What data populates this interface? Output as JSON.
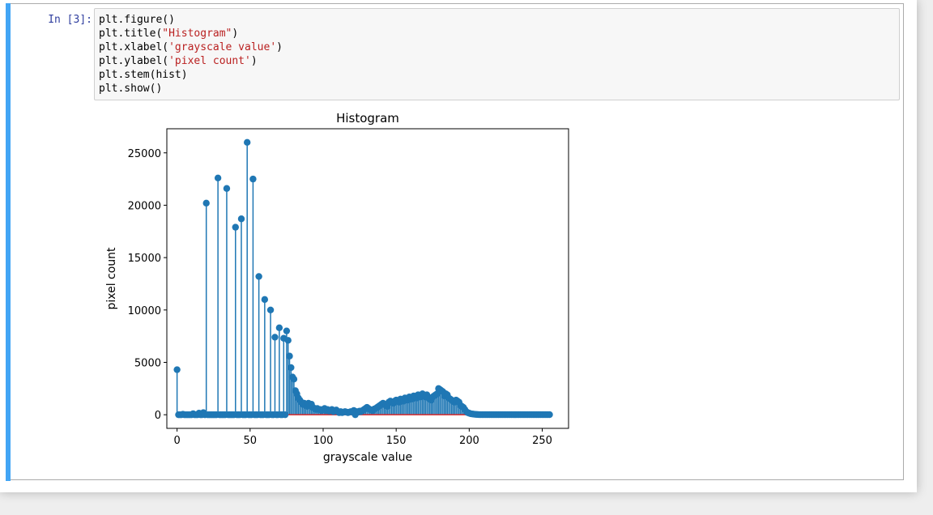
{
  "cell": {
    "prompt": "In [3]:",
    "code_lines": [
      {
        "pre": "plt.figure()",
        "str": "",
        "post": ""
      },
      {
        "pre": "plt.title(",
        "str": "\"Histogram\"",
        "post": ")"
      },
      {
        "pre": "plt.xlabel(",
        "str": "'grayscale value'",
        "post": ")"
      },
      {
        "pre": "plt.ylabel(",
        "str": "'pixel count'",
        "post": ")"
      },
      {
        "pre": "plt.stem(hist)",
        "str": "",
        "post": ""
      },
      {
        "pre": "plt.show()",
        "str": "",
        "post": ""
      }
    ]
  },
  "chart_data": {
    "type": "stem",
    "title": "Histogram",
    "xlabel": "grayscale value",
    "ylabel": "pixel count",
    "xlim": [
      -7,
      268
    ],
    "ylim": [
      -1300,
      27300
    ],
    "xticks": [
      0,
      50,
      100,
      150,
      200,
      250
    ],
    "yticks": [
      0,
      5000,
      10000,
      15000,
      20000,
      25000
    ],
    "colors": {
      "stem": "#1f77b4",
      "baseline": "#d62728"
    },
    "x": [
      0,
      1,
      2,
      3,
      4,
      5,
      6,
      7,
      8,
      9,
      10,
      11,
      12,
      13,
      14,
      15,
      16,
      17,
      18,
      19,
      20,
      21,
      22,
      23,
      24,
      25,
      26,
      27,
      28,
      29,
      30,
      31,
      32,
      33,
      34,
      35,
      36,
      37,
      38,
      39,
      40,
      41,
      42,
      43,
      44,
      45,
      46,
      47,
      48,
      49,
      50,
      51,
      52,
      53,
      54,
      55,
      56,
      57,
      58,
      59,
      60,
      61,
      62,
      63,
      64,
      65,
      66,
      67,
      68,
      69,
      70,
      71,
      72,
      73,
      74,
      75,
      76,
      77,
      78,
      79,
      80,
      81,
      82,
      83,
      84,
      85,
      86,
      87,
      88,
      89,
      90,
      91,
      92,
      93,
      94,
      95,
      96,
      97,
      98,
      99,
      100,
      101,
      102,
      103,
      104,
      105,
      106,
      107,
      108,
      109,
      110,
      111,
      112,
      113,
      114,
      115,
      116,
      117,
      118,
      119,
      120,
      121,
      122,
      123,
      124,
      125,
      126,
      127,
      128,
      129,
      130,
      131,
      132,
      133,
      134,
      135,
      136,
      137,
      138,
      139,
      140,
      141,
      142,
      143,
      144,
      145,
      146,
      147,
      148,
      149,
      150,
      151,
      152,
      153,
      154,
      155,
      156,
      157,
      158,
      159,
      160,
      161,
      162,
      163,
      164,
      165,
      166,
      167,
      168,
      169,
      170,
      171,
      172,
      173,
      174,
      175,
      176,
      177,
      178,
      179,
      180,
      181,
      182,
      183,
      184,
      185,
      186,
      187,
      188,
      189,
      190,
      191,
      192,
      193,
      194,
      195,
      196,
      197,
      198,
      199,
      200,
      201,
      202,
      203,
      204,
      205,
      206,
      207,
      208,
      209,
      210,
      211,
      212,
      213,
      214,
      215,
      216,
      217,
      218,
      219,
      220,
      221,
      222,
      223,
      224,
      225,
      226,
      227,
      228,
      229,
      230,
      231,
      232,
      233,
      234,
      235,
      236,
      237,
      238,
      239,
      240,
      241,
      242,
      243,
      244,
      245,
      246,
      247,
      248,
      249,
      250,
      251,
      252,
      253,
      254,
      255
    ],
    "y": [
      4300,
      0,
      0,
      0,
      50,
      0,
      0,
      0,
      0,
      0,
      0,
      100,
      0,
      0,
      0,
      150,
      0,
      0,
      200,
      0,
      20200,
      0,
      0,
      0,
      0,
      0,
      0,
      0,
      22600,
      0,
      0,
      0,
      0,
      0,
      21600,
      0,
      0,
      0,
      0,
      0,
      17900,
      0,
      0,
      0,
      18700,
      0,
      0,
      0,
      26000,
      0,
      0,
      0,
      22500,
      0,
      0,
      0,
      13200,
      0,
      0,
      0,
      11000,
      0,
      0,
      0,
      10000,
      0,
      0,
      7400,
      0,
      0,
      8300,
      0,
      0,
      7300,
      0,
      8000,
      7100,
      5600,
      4500,
      3600,
      3400,
      2300,
      2000,
      1600,
      1400,
      1200,
      1000,
      1100,
      900,
      800,
      1100,
      900,
      1000,
      700,
      600,
      500,
      600,
      500,
      500,
      400,
      500,
      600,
      400,
      500,
      350,
      400,
      500,
      300,
      350,
      450,
      300,
      200,
      300,
      200,
      250,
      300,
      250,
      200,
      250,
      300,
      250,
      400,
      0,
      300,
      250,
      350,
      300,
      400,
      500,
      600,
      700,
      600,
      500,
      450,
      400,
      550,
      600,
      700,
      800,
      900,
      1000,
      1100,
      1000,
      900,
      800,
      1200,
      1300,
      1200,
      1100,
      1300,
      1400,
      1300,
      1200,
      1500,
      1400,
      1300,
      1600,
      1500,
      1400,
      1700,
      1600,
      1500,
      1800,
      1700,
      1600,
      1900,
      1800,
      1700,
      2000,
      1800,
      1700,
      1900,
      1600,
      1500,
      1400,
      1700,
      1800,
      1900,
      2000,
      2500,
      2400,
      2300,
      2200,
      1800,
      2000,
      1900,
      1600,
      1500,
      1400,
      1300,
      1200,
      1400,
      1300,
      1200,
      900,
      800,
      700,
      500,
      300,
      200,
      150,
      100,
      80,
      60,
      40,
      30,
      20,
      10,
      10,
      10,
      10,
      10,
      10,
      10,
      10,
      10,
      10,
      10,
      10,
      10,
      10,
      10,
      10,
      10,
      10,
      10,
      10,
      10,
      10,
      10,
      10,
      10,
      10,
      10,
      10,
      10,
      10,
      10,
      10,
      10,
      10,
      10,
      10,
      10,
      10,
      10,
      10,
      10,
      10,
      10,
      10,
      10,
      10,
      10,
      10,
      10
    ]
  }
}
